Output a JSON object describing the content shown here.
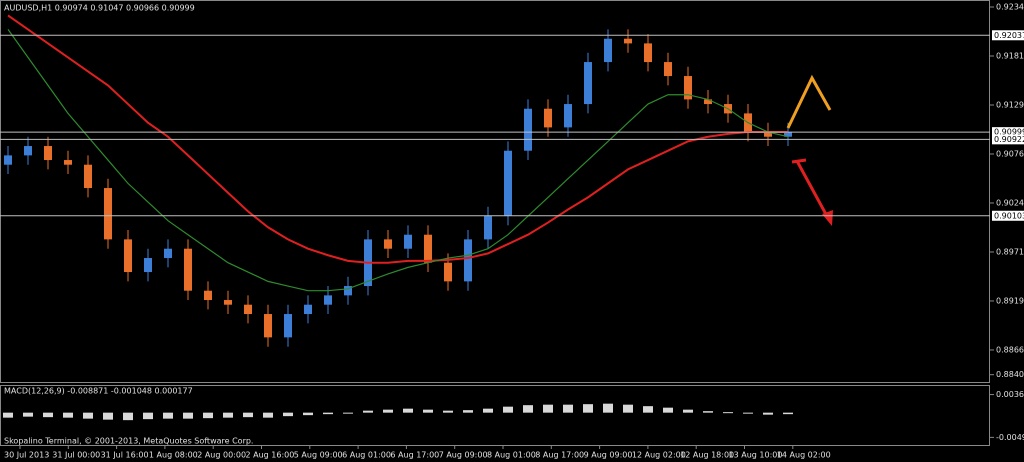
{
  "chart_data": {
    "type": "candlestick",
    "title": "AUDUSD,H1  0.90974 0.91047 0.90966 0.90999",
    "open": [
      0.9065,
      0.9075,
      0.9085,
      0.907,
      0.9065,
      0.904,
      0.8985,
      0.895,
      0.8965,
      0.8975,
      0.893,
      0.892,
      0.8915,
      0.8905,
      0.888,
      0.8905,
      0.8915,
      0.8925,
      0.8935,
      0.8985,
      0.8975,
      0.899,
      0.896,
      0.894,
      0.8985,
      0.901,
      0.908,
      0.9125,
      0.9105,
      0.913,
      0.9175,
      0.92,
      0.9195,
      0.9175,
      0.916,
      0.9135,
      0.913,
      0.912,
      0.91,
      0.9095
    ],
    "high": [
      0.9085,
      0.9095,
      0.9095,
      0.908,
      0.9075,
      0.905,
      0.8995,
      0.8975,
      0.8985,
      0.8985,
      0.894,
      0.893,
      0.8925,
      0.8915,
      0.8915,
      0.8925,
      0.8935,
      0.8945,
      0.8995,
      0.8995,
      0.9,
      0.9,
      0.897,
      0.8995,
      0.902,
      0.909,
      0.9135,
      0.9135,
      0.914,
      0.9185,
      0.921,
      0.921,
      0.9205,
      0.9185,
      0.917,
      0.9145,
      0.914,
      0.913,
      0.911,
      0.911
    ],
    "low": [
      0.9055,
      0.9065,
      0.906,
      0.9055,
      0.903,
      0.8975,
      0.894,
      0.894,
      0.8955,
      0.892,
      0.891,
      0.8905,
      0.8895,
      0.887,
      0.887,
      0.8895,
      0.8905,
      0.8915,
      0.8925,
      0.8965,
      0.8965,
      0.895,
      0.893,
      0.893,
      0.8975,
      0.9,
      0.907,
      0.9095,
      0.9095,
      0.912,
      0.9165,
      0.9185,
      0.9165,
      0.915,
      0.9125,
      0.912,
      0.911,
      0.909,
      0.9085,
      0.9085
    ],
    "close": [
      0.9075,
      0.9085,
      0.907,
      0.9065,
      0.904,
      0.8985,
      0.895,
      0.8965,
      0.8975,
      0.893,
      0.892,
      0.8915,
      0.8905,
      0.888,
      0.8905,
      0.8915,
      0.8925,
      0.8935,
      0.8985,
      0.8975,
      0.899,
      0.896,
      0.894,
      0.8985,
      0.901,
      0.908,
      0.9125,
      0.9105,
      0.913,
      0.9175,
      0.92,
      0.9195,
      0.9175,
      0.916,
      0.9135,
      0.913,
      0.912,
      0.91,
      0.9095,
      0.91
    ],
    "up_color": "#3d7fd6",
    "down_color": "#e8702a",
    "lines": [
      {
        "color": "#e02020",
        "values": [
          0.9225,
          0.921,
          0.9195,
          0.918,
          0.9165,
          0.915,
          0.913,
          0.911,
          0.9095,
          0.9075,
          0.9055,
          0.9035,
          0.9015,
          0.8998,
          0.8985,
          0.8975,
          0.8968,
          0.8962,
          0.896,
          0.896,
          0.8962,
          0.8962,
          0.8963,
          0.8965,
          0.897,
          0.898,
          0.899,
          0.9003,
          0.9017,
          0.903,
          0.9045,
          0.906,
          0.907,
          0.908,
          0.909,
          0.9095,
          0.9098,
          0.91,
          0.91,
          0.91
        ]
      },
      {
        "color": "#2e8b2e",
        "values": [
          0.921,
          0.918,
          0.915,
          0.912,
          0.9095,
          0.907,
          0.9045,
          0.9025,
          0.9005,
          0.899,
          0.8975,
          0.896,
          0.895,
          0.894,
          0.8935,
          0.893,
          0.893,
          0.8932,
          0.894,
          0.8948,
          0.8955,
          0.896,
          0.8965,
          0.8968,
          0.8975,
          0.899,
          0.901,
          0.903,
          0.905,
          0.907,
          0.909,
          0.911,
          0.913,
          0.914,
          0.914,
          0.9135,
          0.9125,
          0.911,
          0.91,
          0.9095
        ]
      }
    ],
    "levels": [
      {
        "value": 0.92037,
        "label": "0.92037"
      },
      {
        "value": 0.90999,
        "label": "0.90999"
      },
      {
        "value": 0.90922,
        "label": "0.90922"
      },
      {
        "value": 0.90103,
        "label": "0.90103"
      }
    ],
    "ylim": [
      0.88311,
      0.92415
    ],
    "yticks": [
      {
        "value": 0.9234,
        "label": "0.92340"
      },
      {
        "value": 0.91815,
        "label": "0.91815"
      },
      {
        "value": 0.9129,
        "label": "0.91290"
      },
      {
        "value": 0.90765,
        "label": "0.90765"
      },
      {
        "value": 0.9024,
        "label": "0.90240"
      },
      {
        "value": 0.89715,
        "label": "0.89715"
      },
      {
        "value": 0.8919,
        "label": "0.89190"
      },
      {
        "value": 0.88665,
        "label": "0.88665"
      },
      {
        "value": 0.884,
        "label": "0.88400"
      }
    ],
    "x_labels": [
      "30 Jul 2013",
      "31 Jul 00:00",
      "31 Jul 16:00",
      "1 Aug 08:00",
      "2 Aug 00:00",
      "2 Aug 16:00",
      "5 Aug 09:00",
      "6 Aug 01:00",
      "6 Aug 17:00",
      "7 Aug 09:00",
      "8 Aug 01:00",
      "8 Aug 17:00",
      "9 Aug 09:00",
      "12 Aug 02:00",
      "12 Aug 18:00",
      "13 Aug 10:00",
      "14 Aug 02:00"
    ],
    "macd": {
      "label": "MACD(12,26,9) -0.008871 -0.001048 0.000177",
      "values": [
        -0.001,
        -0.0008,
        -0.0009,
        -0.001,
        -0.0012,
        -0.0014,
        -0.0015,
        -0.0013,
        -0.0012,
        -0.0012,
        -0.0011,
        -0.001,
        -0.0009,
        -0.001,
        -0.0007,
        -0.0005,
        -0.0003,
        -0.0001,
        0.0004,
        0.0006,
        0.0008,
        0.0006,
        0.0004,
        0.0005,
        0.0008,
        0.0012,
        0.0015,
        0.0016,
        0.0016,
        0.0017,
        0.0018,
        0.0016,
        0.0013,
        0.001,
        0.0006,
        0.0003,
        0.0001,
        -0.0002,
        -0.0004,
        -0.0003
      ],
      "color": "#d8d8d8",
      "ylim": [
        -0.00648,
        0.00534
      ],
      "yticks": [
        {
          "value": 0.003623,
          "label": "0.003623"
        },
        {
          "value": -0.004953,
          "label": "-0.004953"
        }
      ]
    },
    "footer": "Skopalino Terminal, © 2001-2013, MetaQuotes Software Corp."
  }
}
